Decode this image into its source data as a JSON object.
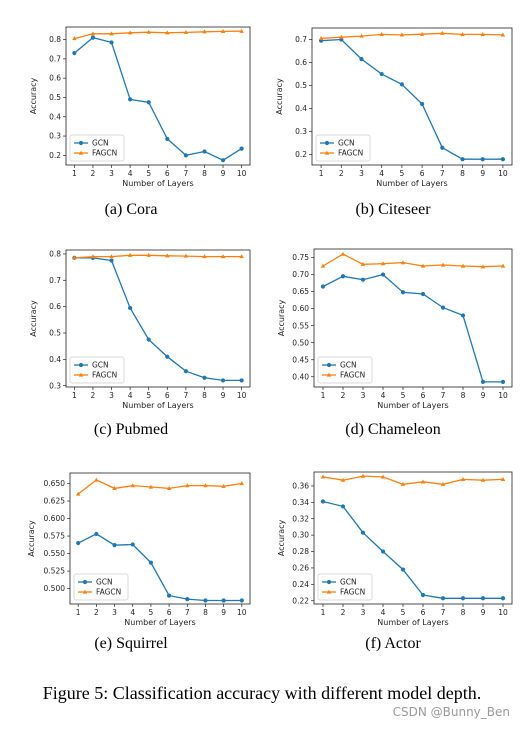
{
  "colors": {
    "gcn": "#1f77b4",
    "fagcn": "#ff7f0e",
    "axis": "#222222",
    "legend_border": "#cccccc"
  },
  "figure_caption": "Figure 5: Classification accuracy with different model depth.",
  "watermark": "CSDN @Bunny_Ben",
  "chart_data": [
    {
      "type": "line",
      "subcaption": "(a) Cora",
      "xlabel": "Number of Layers",
      "ylabel": "Accuracy",
      "x": [
        1,
        2,
        3,
        4,
        5,
        6,
        7,
        8,
        9,
        10
      ],
      "yticks": [
        0.2,
        0.3,
        0.4,
        0.5,
        0.6,
        0.7,
        0.8
      ],
      "ytick_labels": [
        "0.2",
        "0.3",
        "0.4",
        "0.5",
        "0.6",
        "0.7",
        "0.8"
      ],
      "ylim": [
        0.15,
        0.865
      ],
      "legend": "lower left",
      "series": [
        {
          "name": "GCN",
          "marker": "circle",
          "values": [
            0.73,
            0.81,
            0.785,
            0.49,
            0.475,
            0.285,
            0.2,
            0.22,
            0.175,
            0.235
          ]
        },
        {
          "name": "FAGCN",
          "marker": "triangle",
          "values": [
            0.805,
            0.83,
            0.83,
            0.835,
            0.838,
            0.835,
            0.837,
            0.84,
            0.842,
            0.843
          ]
        }
      ]
    },
    {
      "type": "line",
      "subcaption": "(b) Citeseer",
      "xlabel": "Number of Layers",
      "ylabel": "Accuracy",
      "x": [
        1,
        2,
        3,
        4,
        5,
        6,
        7,
        8,
        9,
        10
      ],
      "yticks": [
        0.2,
        0.3,
        0.4,
        0.5,
        0.6,
        0.7
      ],
      "ytick_labels": [
        "0.2",
        "0.3",
        "0.4",
        "0.5",
        "0.6",
        "0.7"
      ],
      "ylim": [
        0.155,
        0.75
      ],
      "legend": "lower left",
      "series": [
        {
          "name": "GCN",
          "marker": "circle",
          "values": [
            0.695,
            0.7,
            0.615,
            0.55,
            0.505,
            0.42,
            0.23,
            0.18,
            0.18,
            0.18
          ]
        },
        {
          "name": "FAGCN",
          "marker": "triangle",
          "values": [
            0.705,
            0.71,
            0.715,
            0.722,
            0.72,
            0.723,
            0.727,
            0.722,
            0.722,
            0.72
          ]
        }
      ]
    },
    {
      "type": "line",
      "subcaption": "(c) Pubmed",
      "xlabel": "Number of Layers",
      "ylabel": "Accuracy",
      "x": [
        1,
        2,
        3,
        4,
        5,
        6,
        7,
        8,
        9,
        10
      ],
      "yticks": [
        0.3,
        0.4,
        0.5,
        0.6,
        0.7,
        0.8
      ],
      "ytick_labels": [
        "0.3",
        "0.4",
        "0.5",
        "0.6",
        "0.7",
        "0.8"
      ],
      "ylim": [
        0.295,
        0.815
      ],
      "legend": "lower left",
      "series": [
        {
          "name": "GCN",
          "marker": "circle",
          "values": [
            0.785,
            0.785,
            0.775,
            0.595,
            0.475,
            0.41,
            0.355,
            0.33,
            0.32,
            0.32
          ]
        },
        {
          "name": "FAGCN",
          "marker": "triangle",
          "values": [
            0.785,
            0.79,
            0.79,
            0.795,
            0.795,
            0.793,
            0.792,
            0.79,
            0.79,
            0.79
          ]
        }
      ]
    },
    {
      "type": "line",
      "subcaption": "(d) Chameleon",
      "xlabel": "Number of Layers",
      "ylabel": "Accuracy",
      "x": [
        1,
        2,
        3,
        4,
        5,
        6,
        7,
        8,
        9,
        10
      ],
      "yticks": [
        0.4,
        0.45,
        0.5,
        0.55,
        0.6,
        0.65,
        0.7,
        0.75
      ],
      "ytick_labels": [
        "0.40",
        "0.45",
        "0.50",
        "0.55",
        "0.60",
        "0.65",
        "0.70",
        "0.75"
      ],
      "ylim": [
        0.37,
        0.775
      ],
      "legend": "lower left",
      "series": [
        {
          "name": "GCN",
          "marker": "circle",
          "values": [
            0.665,
            0.695,
            0.685,
            0.7,
            0.648,
            0.643,
            0.603,
            0.58,
            0.385,
            0.385
          ]
        },
        {
          "name": "FAGCN",
          "marker": "triangle",
          "values": [
            0.725,
            0.76,
            0.73,
            0.732,
            0.735,
            0.725,
            0.728,
            0.725,
            0.723,
            0.725
          ]
        }
      ]
    },
    {
      "type": "line",
      "subcaption": "(e) Squirrel",
      "xlabel": "Number of Layers",
      "ylabel": "Accuracy",
      "x": [
        1,
        2,
        3,
        4,
        5,
        6,
        7,
        8,
        9,
        10
      ],
      "yticks": [
        0.5,
        0.525,
        0.55,
        0.575,
        0.6,
        0.625,
        0.65
      ],
      "ytick_labels": [
        "0.500",
        "0.525",
        "0.550",
        "0.575",
        "0.600",
        "0.625",
        "0.650"
      ],
      "ylim": [
        0.478,
        0.665
      ],
      "legend": "lower left",
      "series": [
        {
          "name": "GCN",
          "marker": "circle",
          "values": [
            0.565,
            0.578,
            0.562,
            0.563,
            0.537,
            0.49,
            0.485,
            0.483,
            0.483,
            0.483
          ]
        },
        {
          "name": "FAGCN",
          "marker": "triangle",
          "values": [
            0.635,
            0.655,
            0.643,
            0.647,
            0.645,
            0.643,
            0.647,
            0.647,
            0.646,
            0.65
          ]
        }
      ]
    },
    {
      "type": "line",
      "subcaption": "(f) Actor",
      "xlabel": "Number of Layers",
      "ylabel": "Accuracy",
      "x": [
        1,
        2,
        3,
        4,
        5,
        6,
        7,
        8,
        9,
        10
      ],
      "yticks": [
        0.22,
        0.24,
        0.26,
        0.28,
        0.3,
        0.32,
        0.34,
        0.36
      ],
      "ytick_labels": [
        "0.22",
        "0.24",
        "0.26",
        "0.28",
        "0.30",
        "0.32",
        "0.34",
        "0.36"
      ],
      "ylim": [
        0.216,
        0.377
      ],
      "legend": "lower left",
      "series": [
        {
          "name": "GCN",
          "marker": "circle",
          "values": [
            0.341,
            0.335,
            0.303,
            0.28,
            0.258,
            0.227,
            0.223,
            0.223,
            0.223,
            0.223
          ]
        },
        {
          "name": "FAGCN",
          "marker": "triangle",
          "values": [
            0.371,
            0.367,
            0.372,
            0.371,
            0.362,
            0.365,
            0.362,
            0.368,
            0.367,
            0.368
          ]
        }
      ]
    }
  ]
}
